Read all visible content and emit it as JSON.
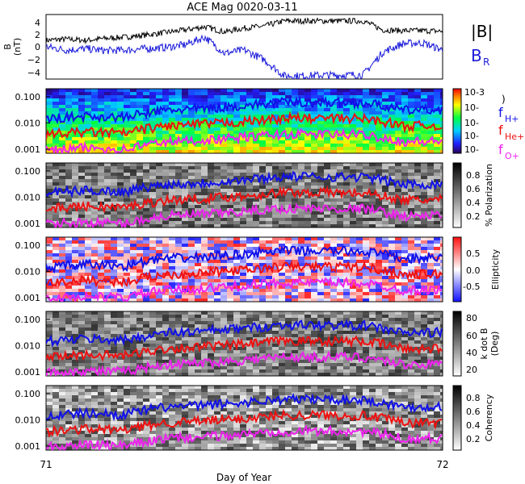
{
  "title": "ACE Mag 0020-03-11",
  "xaxis": {
    "label": "Day of Year",
    "range": [
      71,
      72
    ],
    "tick_labels": [
      "71",
      "72"
    ]
  },
  "legend_top": {
    "B_mag": "|B|",
    "B_R": "B",
    "B_R_sub": "R"
  },
  "legend_freq": {
    "h": "f",
    "h_sub": "H+",
    "he": "f",
    "he_sub": "He+",
    "o": "f",
    "o_sub": "O+",
    "paren": ")"
  },
  "colors": {
    "b_mag": "#000000",
    "b_r": "#1a1adb",
    "f_h": "#1010e8",
    "f_he": "#ee1111",
    "f_o": "#ee22ee"
  },
  "chart_data": [
    {
      "type": "line",
      "panel": "magnetic-field",
      "ylabel": "B",
      "ylabel2": "(nT)",
      "ylim": [
        -5,
        5
      ],
      "yticks": [
        4,
        2,
        0,
        -2,
        -4
      ],
      "x": [
        71.0,
        71.05,
        71.1,
        71.15,
        71.2,
        71.25,
        71.3,
        71.35,
        71.4,
        71.45,
        71.5,
        71.55,
        71.6,
        71.65,
        71.7,
        71.75,
        71.8,
        71.85,
        71.9,
        71.95,
        72.0
      ],
      "series": [
        {
          "name": "|B|",
          "values": [
            1.0,
            1.2,
            1.0,
            1.3,
            1.5,
            1.8,
            2.2,
            2.6,
            3.1,
            2.3,
            2.9,
            3.2,
            4.0,
            4.0,
            4.0,
            4.0,
            4.0,
            2.6,
            2.5,
            2.5,
            2.4
          ]
        },
        {
          "name": "B",
          "values": [
            0.0,
            -0.5,
            -0.3,
            -0.6,
            -0.5,
            -0.3,
            -0.1,
            0.3,
            1.5,
            -1.0,
            -0.5,
            -2.0,
            -4.5,
            -4.5,
            -4.4,
            -4.4,
            -4.3,
            -0.8,
            0.5,
            0.6,
            -0.5
          ]
        }
      ]
    },
    {
      "type": "heatmap",
      "panel": "power-spectrum",
      "yscale": "log",
      "ylim": [
        0.0007,
        0.2
      ],
      "yticks": [
        "0.100",
        "0.010",
        "0.001"
      ],
      "colorbar_ticks": [
        "10-3",
        "10-",
        "10-",
        "10-",
        "10-"
      ]
    },
    {
      "type": "heatmap",
      "panel": "polarization",
      "yscale": "log",
      "ylim": [
        0.0007,
        0.2
      ],
      "yticks": [
        "0.100",
        "0.010",
        "0.001"
      ],
      "colorbar_label": "% Polarization",
      "colorbar_ticks": [
        "0.8",
        "0.6",
        "0.4",
        "0.2"
      ]
    },
    {
      "type": "heatmap",
      "panel": "ellipticity",
      "yscale": "log",
      "ylim": [
        0.0007,
        0.2
      ],
      "yticks": [
        "0.100",
        "0.010",
        "0.001"
      ],
      "colorbar_label": "Ellipticity",
      "colorbar_ticks": [
        "0.5",
        "0.0",
        "-0.5"
      ]
    },
    {
      "type": "heatmap",
      "panel": "k-dot-b",
      "yscale": "log",
      "ylim": [
        0.0007,
        0.2
      ],
      "yticks": [
        "0.100",
        "0.010",
        "0.001"
      ],
      "colorbar_label": "k dot B",
      "colorbar_label2": "(Deg)",
      "colorbar_ticks": [
        "80",
        "60",
        "40",
        "20"
      ]
    },
    {
      "type": "heatmap",
      "panel": "coherency",
      "yscale": "log",
      "ylim": [
        0.0007,
        0.2
      ],
      "yticks": [
        "0.100",
        "0.010",
        "0.001"
      ],
      "colorbar_label": "Coherency",
      "colorbar_ticks": [
        "0.8",
        "0.6",
        "0.4",
        "0.2"
      ]
    }
  ],
  "gyrofrequency_lines": {
    "x": [
      71.0,
      71.1,
      71.2,
      71.3,
      71.4,
      71.5,
      71.6,
      71.7,
      71.8,
      71.9,
      72.0
    ],
    "H+": [
      0.014,
      0.018,
      0.016,
      0.03,
      0.035,
      0.045,
      0.06,
      0.06,
      0.058,
      0.03,
      0.032
    ],
    "He+": [
      0.0035,
      0.0045,
      0.004,
      0.0075,
      0.009,
      0.011,
      0.015,
      0.015,
      0.0145,
      0.0075,
      0.008
    ],
    "O+": [
      0.0009,
      0.0011,
      0.001,
      0.0019,
      0.0022,
      0.0028,
      0.0037,
      0.0037,
      0.0036,
      0.0019,
      0.002
    ]
  }
}
